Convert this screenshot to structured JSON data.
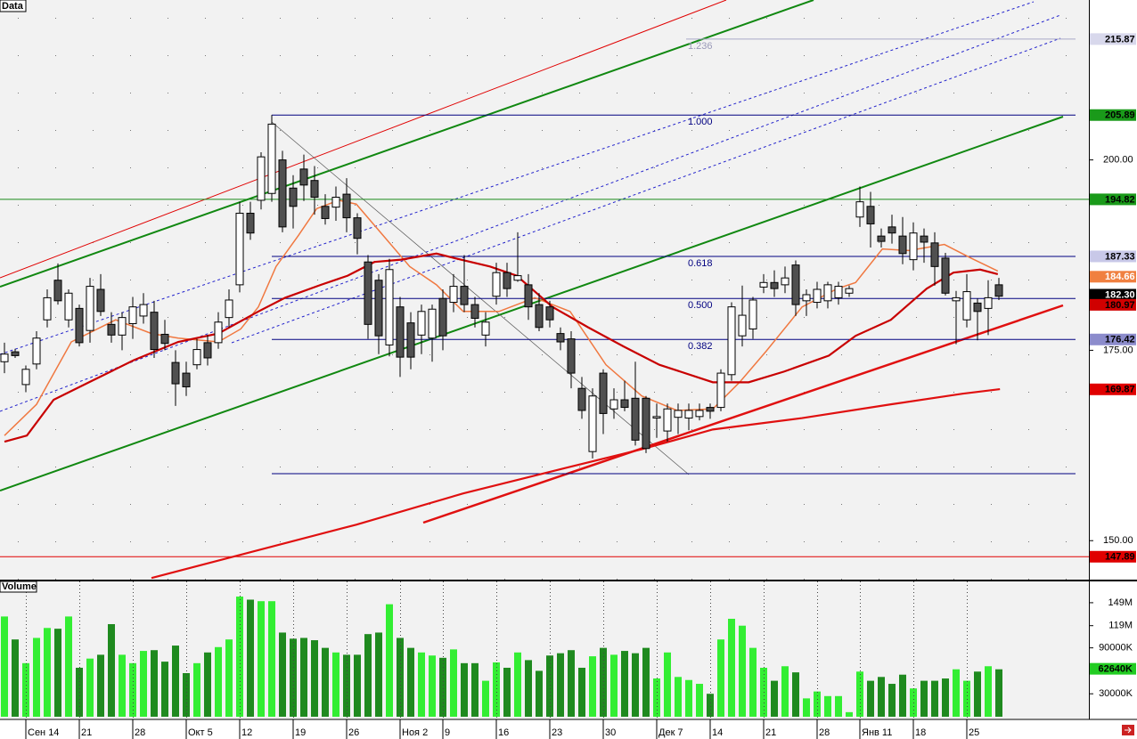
{
  "chart_data": [
    {
      "type": "candlestick",
      "title": "Data",
      "categories": [
        null,
        null,
        "Сен 14",
        null,
        null,
        null,
        null,
        "21",
        null,
        null,
        null,
        null,
        "28",
        null,
        null,
        null,
        null,
        "Окт 5",
        null,
        null,
        null,
        null,
        "12",
        null,
        null,
        null,
        null,
        "19",
        null,
        null,
        null,
        null,
        "26",
        null,
        null,
        null,
        null,
        "Ноя 2",
        null,
        null,
        null,
        "9",
        null,
        null,
        null,
        null,
        "16",
        null,
        null,
        null,
        null,
        "23",
        null,
        null,
        null,
        null,
        "30",
        null,
        null,
        null,
        null,
        "Дек 7",
        null,
        null,
        null,
        null,
        "14",
        null,
        null,
        null,
        null,
        "21",
        null,
        null,
        null,
        null,
        "28",
        null,
        null,
        null,
        "Янв 11",
        null,
        null,
        null,
        null,
        "18",
        null,
        null,
        null,
        null,
        "25",
        null,
        null,
        null
      ],
      "open": [
        173.5,
        174.8,
        170.5,
        173.2,
        179,
        184.2,
        179,
        180.5,
        177.6,
        183,
        178.4,
        177,
        178.5,
        179.5,
        180,
        177.1,
        173.4,
        172,
        173.1,
        176,
        176,
        179.3,
        183.6,
        193,
        194.7,
        195.6,
        200,
        196.3,
        198.8,
        197.3,
        193.9,
        193.8,
        195.5,
        192.4,
        186.6,
        184.2,
        175.7,
        180.7,
        178.6,
        177,
        176.6,
        181.8,
        181.3,
        183.4,
        181,
        177,
        182.1,
        185.2,
        184.2,
        183.6,
        181,
        180.7,
        177.2,
        176.5,
        170,
        161.7,
        172,
        167.3,
        168.5,
        168.7,
        168.7,
        166.1,
        164.4,
        166.2,
        166.1,
        166.3,
        167.5,
        167.5,
        171.8,
        176.9,
        177.8,
        183.3,
        183.9,
        183.6,
        186.2,
        181.5,
        181.3,
        181.5,
        181.9,
        182.5,
        192.5,
        193.9,
        190,
        191.2,
        190,
        186.9,
        190,
        189.1,
        187.1,
        181.5,
        179,
        181.2,
        180.5,
        183.6
      ],
      "high": [
        176,
        175.2,
        173,
        177.5,
        183,
        186.4,
        183,
        181,
        184.5,
        185,
        180,
        180,
        182,
        182.5,
        181.5,
        179,
        175,
        173.5,
        176.5,
        177,
        180,
        183,
        194.5,
        194.5,
        201,
        205.9,
        201.2,
        198,
        200.7,
        199.2,
        195.5,
        196.5,
        197.6,
        193,
        187.5,
        185,
        187,
        182,
        180,
        181,
        181,
        183,
        185,
        187.5,
        182,
        180,
        186.5,
        186.5,
        190.5,
        185,
        182.5,
        181.5,
        178,
        177.5,
        171.5,
        170,
        172.5,
        170,
        171,
        173.5,
        169,
        168,
        168,
        168,
        168,
        168,
        168,
        172.5,
        181.3,
        183.5,
        182,
        185,
        185.5,
        186,
        186.8,
        183,
        184,
        184,
        184,
        183.5,
        196.5,
        195.8,
        191,
        192.8,
        192.5,
        191.8,
        191,
        190.5,
        187.8,
        182.8,
        185,
        181.8,
        184.2,
        184.5
      ],
      "low": [
        172,
        174,
        169.5,
        172.5,
        178,
        181,
        178,
        175.5,
        176,
        179.5,
        176,
        175,
        176.5,
        178.5,
        174,
        175,
        167.7,
        169,
        172.5,
        173,
        175.2,
        178,
        182.6,
        189.5,
        193.5,
        194.5,
        190.5,
        191,
        194.6,
        192.8,
        191.5,
        192,
        190.5,
        187.6,
        176.5,
        174.5,
        174.2,
        171.5,
        172.5,
        174.5,
        173.5,
        175,
        180,
        180,
        178,
        175.5,
        181,
        182,
        184,
        179,
        177.5,
        178,
        175,
        170,
        166,
        160.8,
        164,
        166,
        167,
        162.5,
        161.5,
        163.5,
        163,
        164,
        164.5,
        165.8,
        166,
        167,
        171,
        175.5,
        176.5,
        182.5,
        182,
        182.5,
        179.5,
        179.5,
        180.5,
        180.5,
        181,
        182,
        191.2,
        188.5,
        188.5,
        189,
        186.3,
        185.5,
        186.5,
        183.5,
        182.2,
        175.8,
        178,
        176.3,
        177,
        181.6
      ],
      "close": [
        174.5,
        174.3,
        172.5,
        176.6,
        181.9,
        181.5,
        182.5,
        176,
        183.4,
        180.1,
        177,
        179.3,
        180.7,
        181,
        175.1,
        175.9,
        170.6,
        170.2,
        175.1,
        174,
        178.7,
        181.6,
        193,
        190.4,
        200.4,
        204.7,
        191.2,
        193.9,
        196.7,
        195.1,
        192.3,
        195.1,
        192.4,
        189.7,
        178.4,
        176.9,
        185.6,
        174.1,
        174.1,
        180.1,
        180.4,
        176.9,
        183.4,
        181,
        179.2,
        178.7,
        185.2,
        183.1,
        184.8,
        180.7,
        178,
        179,
        176.1,
        172,
        167.1,
        169,
        166.7,
        168.5,
        167.5,
        163.2,
        162.1,
        166.3,
        167.3,
        167.1,
        167.1,
        167.1,
        167,
        172,
        180.7,
        179.6,
        181.6,
        183.9,
        183.1,
        184.5,
        181,
        182.3,
        183,
        183.6,
        183.4,
        183.1,
        194.5,
        191.6,
        189.3,
        190.4,
        187.7,
        190.4,
        189.2,
        186,
        182.5,
        181.9,
        182.7,
        180.1,
        181.9,
        182.1
      ],
      "up_color": "#ffffff",
      "down_color": "#505050",
      "lines": [
        {
          "color": "#f07840",
          "x": [
            0,
            3,
            6.25,
            10.4,
            13.75,
            16.25,
            20,
            22.1,
            23.75,
            25.4,
            27.5,
            29.2,
            31.25,
            32.9,
            35.4,
            37.9,
            40.4,
            42.9,
            46.25,
            49.6,
            52.9,
            56.25,
            59.6,
            62.9,
            66.25,
            68.75,
            71.25,
            74.6,
            77.9,
            79.6,
            82.1,
            84.6,
            87.9,
            90.4,
            92.9
          ],
          "values": [
            163.8,
            167.9,
            176.1,
            179,
            177.2,
            176.6,
            176.1,
            177.8,
            180.7,
            186,
            190.1,
            193.6,
            194.7,
            194.2,
            190.1,
            186,
            183.6,
            180.1,
            180.1,
            181.9,
            180.1,
            173.1,
            169,
            167.1,
            167.3,
            170.8,
            174.9,
            180.7,
            183.1,
            183.9,
            188.3,
            188.1,
            188.9,
            187.1,
            185.4
          ]
        },
        {
          "color": "#c80000",
          "x": [
            0,
            2.1,
            4.6,
            7.9,
            12.1,
            16.25,
            20,
            23.75,
            26.25,
            29.6,
            32.1,
            34.6,
            37.1,
            40.4,
            42.1,
            45.4,
            47.9,
            51.25,
            54.6,
            57.9,
            61.25,
            66.25,
            69.6,
            72.9,
            77.1,
            79.6,
            82.9,
            86.25,
            88.75,
            91.25,
            92.9
          ],
          "values": [
            163,
            163.8,
            168.5,
            170.8,
            173.7,
            176.1,
            177.2,
            180.1,
            181.9,
            183.6,
            184.8,
            186.6,
            186.9,
            187.7,
            187.1,
            186,
            184.8,
            180.7,
            178,
            175.5,
            173.1,
            170.8,
            170.8,
            172.2,
            174.3,
            176.9,
            179,
            183.1,
            185.2,
            185.6,
            185
          ]
        },
        {
          "color": "#e01010",
          "x": [
            13.75,
            32.9,
            42.9,
            52.9,
            59.6,
            66.25,
            74.6,
            82.9,
            89.6,
            93.1
          ],
          "values": [
            145.1,
            152.1,
            156.2,
            159.7,
            162,
            164.6,
            166.1,
            167.9,
            169.3,
            169.9
          ]
        }
      ],
      "fib_levels": [
        {
          "label": "1.236",
          "value": 215.87
        },
        {
          "label": "1.000",
          "value": 205.89
        },
        {
          "label": "0.618",
          "value": 187.33
        },
        {
          "label": "0.500",
          "value": 181.8
        },
        {
          "label": "0.382",
          "value": 176.42
        }
      ],
      "fib_base": 158.8,
      "hlines": [
        {
          "value": 194.82,
          "color": "#1a8a1a"
        },
        {
          "value": 147.89,
          "color": "#e00000"
        }
      ],
      "markers": [
        {
          "value": 215.87,
          "color": "#d8d8ec",
          "text_color": "#000000"
        },
        {
          "value": 205.89,
          "color": "#1a9a1a",
          "text_color": "#000000"
        },
        {
          "value": 194.82,
          "color": "#1a9a1a",
          "text_color": "#000000"
        },
        {
          "value": 187.33,
          "color": "#c8c8e8",
          "text_color": "#000000"
        },
        {
          "value": 184.66,
          "color": "#f08040",
          "text_color": "#ffffff"
        },
        {
          "value": 182.3,
          "label": "182.30",
          "color": "#000000",
          "text_color": "#ffffff"
        },
        {
          "value": 180.97,
          "color": "#d00000",
          "text_color": "#000000"
        },
        {
          "value": 176.42,
          "color": "#8c8ccc",
          "text_color": "#000000"
        },
        {
          "value": 169.87,
          "color": "#e00000",
          "text_color": "#000000"
        },
        {
          "value": 147.89,
          "color": "#e00000",
          "text_color": "#000000"
        }
      ],
      "ylim": [
        145,
        221
      ],
      "yticks": [
        {
          "value": 200,
          "label": "200.00"
        },
        {
          "value": 175,
          "label": "175.00"
        },
        {
          "value": 150,
          "label": "150.00"
        }
      ]
    },
    {
      "type": "bar",
      "title": "Volume",
      "values": [
        131000000,
        101000000,
        70000000,
        103000000,
        116000000,
        115000000,
        131000000,
        64000000,
        76000000,
        81000000,
        121000000,
        81000000,
        70000000,
        86000000,
        87000000,
        72000000,
        93000000,
        57000000,
        70000000,
        84000000,
        91000000,
        101000000,
        157000000,
        153000000,
        151000000,
        151000000,
        110000000,
        102000000,
        103000000,
        100000000,
        90000000,
        84000000,
        81000000,
        81000000,
        108000000,
        110000000,
        147000000,
        103000000,
        90000000,
        84000000,
        80000000,
        77000000,
        88000000,
        70000000,
        70000000,
        47000000,
        71000000,
        64000000,
        84000000,
        74000000,
        60000000,
        80000000,
        83000000,
        87000000,
        64000000,
        79000000,
        90000000,
        81000000,
        86000000,
        83000000,
        90000000,
        50000000,
        84000000,
        52000000,
        48000000,
        43000000,
        30000000,
        101000000,
        128000000,
        119000000,
        90000000,
        64000000,
        47000000,
        66000000,
        58000000,
        24000000,
        33000000,
        27000000,
        27000000,
        6000000,
        59000000,
        47000000,
        52000000,
        43000000,
        55000000,
        37000000,
        47000000,
        47000000,
        50000000,
        62000000,
        47000000,
        59000000,
        66000000,
        62000000
      ],
      "up_color": "#33ee33",
      "down_color": "#1f8a1f",
      "marker": {
        "value": 62640000,
        "label": "62640K",
        "color": "#22cc22",
        "text_color": "#000000"
      },
      "ylim": [
        0,
        178000000
      ],
      "yticks": [
        {
          "value": 149000000,
          "label": "149M"
        },
        {
          "value": 119000000,
          "label": "119M"
        },
        {
          "value": 90000000,
          "label": "90000K"
        },
        {
          "value": 30000000,
          "label": "30000K"
        }
      ]
    }
  ]
}
